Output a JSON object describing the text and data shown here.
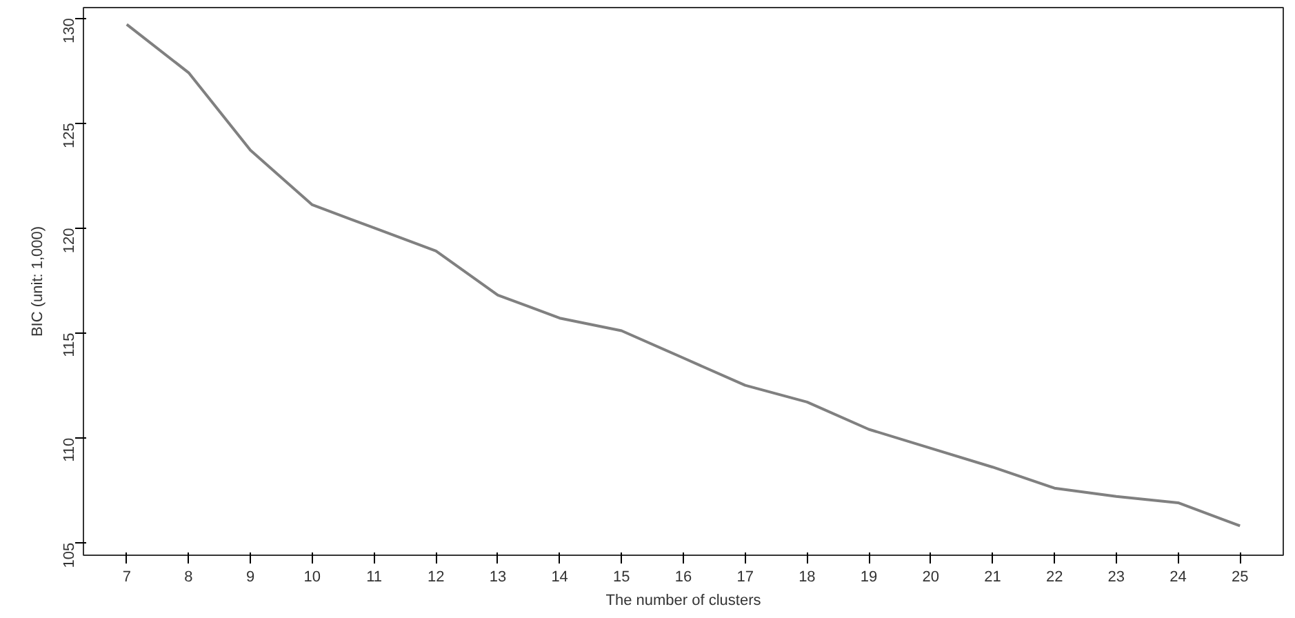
{
  "chart_data": {
    "type": "line",
    "xlabel": "The number of clusters",
    "ylabel": "BIC (unit: 1,000)",
    "x": [
      7,
      8,
      9,
      10,
      11,
      12,
      13,
      14,
      15,
      16,
      17,
      18,
      19,
      20,
      21,
      22,
      23,
      24,
      25
    ],
    "series": [
      {
        "color": "#808080",
        "values": [
          129.7,
          127.4,
          123.7,
          121.1,
          120.0,
          118.9,
          116.8,
          115.7,
          115.1,
          113.8,
          112.5,
          111.7,
          110.4,
          109.5,
          108.6,
          107.6,
          107.2,
          106.9,
          105.8
        ]
      }
    ],
    "xlim": [
      6.3,
      25.7
    ],
    "ylim": [
      104.4,
      130.5
    ],
    "xticks": [
      7,
      8,
      9,
      10,
      11,
      12,
      13,
      14,
      15,
      16,
      17,
      18,
      19,
      20,
      21,
      22,
      23,
      24,
      25
    ],
    "yticks": [
      105,
      110,
      115,
      120,
      125,
      130
    ],
    "grid": false,
    "marker": "none",
    "line_style": "solid"
  }
}
